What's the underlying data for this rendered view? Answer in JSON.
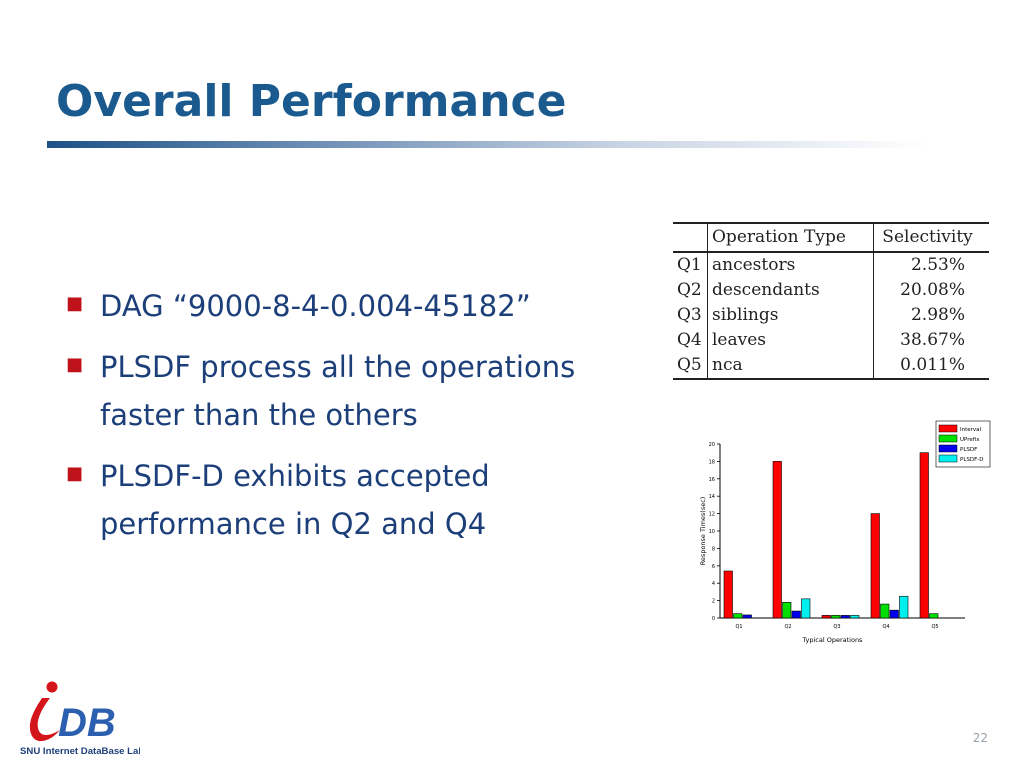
{
  "slide": {
    "title": "Overall Performance",
    "page_number": "22"
  },
  "bullets": [
    "DAG “9000-8-4-0.004-45182”",
    "PLSDF process all the operations faster than the others",
    "PLSDF-D exhibits accepted performance in Q2 and Q4"
  ],
  "table": {
    "headers": [
      "",
      "Operation Type",
      "Selectivity"
    ],
    "rows": [
      [
        "Q1",
        "ancestors",
        "2.53%"
      ],
      [
        "Q2",
        "descendants",
        "20.08%"
      ],
      [
        "Q3",
        "siblings",
        "2.98%"
      ],
      [
        "Q4",
        "leaves",
        "38.67%"
      ],
      [
        "Q5",
        "nca",
        "0.011%"
      ]
    ]
  },
  "logo": {
    "text": "DB",
    "caption": "SNU Internet DataBase Lab."
  },
  "colors": {
    "title": "#1b5a8e",
    "bullet_text": "#1c3f7a",
    "bullet_marker": "#c0121b",
    "Interval": "#ff0000",
    "UPrefix": "#00e000",
    "PLSDF": "#0000ee",
    "PLSDF-D": "#00f0f0"
  },
  "chart_data": {
    "type": "bar",
    "categories": [
      "Q1",
      "Q2",
      "Q3",
      "Q4",
      "Q5"
    ],
    "series": [
      {
        "name": "Interval",
        "values": [
          5.4,
          18.0,
          0.3,
          12.0,
          19.0
        ]
      },
      {
        "name": "UPrefix",
        "values": [
          0.5,
          1.8,
          0.3,
          1.6,
          0.5
        ]
      },
      {
        "name": "PLSDF",
        "values": [
          0.35,
          0.8,
          0.3,
          0.9,
          0
        ]
      },
      {
        "name": "PLSDF-D",
        "values": [
          0,
          2.2,
          0.3,
          2.5,
          0
        ]
      }
    ],
    "xlabel": "Typical Operations",
    "ylabel": "Response Times(sec)",
    "ylim": [
      0,
      20
    ],
    "yticks": [
      "0",
      "2",
      "4",
      "6",
      "8",
      "10",
      "12",
      "14",
      "16",
      "18",
      "20"
    ],
    "legend_position": "top-right"
  }
}
